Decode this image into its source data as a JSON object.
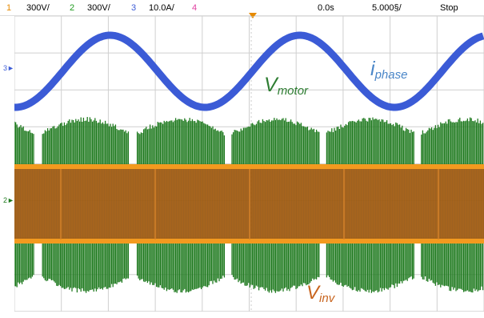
{
  "toolbar": {
    "ch1_num": "1",
    "ch1_scale": "300V/",
    "ch2_num": "2",
    "ch2_scale": "300V/",
    "ch3_num": "3",
    "ch3_scale": "10.0A/",
    "ch4_num": "4",
    "trigger_pos": "0.0s",
    "timebase": "5.000§/",
    "run_state": "Stop"
  },
  "annotations": {
    "v_motor_main": "V",
    "v_motor_sub": "motor",
    "i_phase_main": "i",
    "i_phase_sub": "phase",
    "v_inv_main": "V",
    "v_inv_sub": "inv"
  },
  "markers": {
    "ch3_marker": "3",
    "ch2_marker": "2"
  },
  "colors": {
    "ch1": "#e68a00",
    "ch2": "#1e7a1e",
    "ch3": "#3b5bd6",
    "ch4": "#e040a0",
    "v_motor_label": "#2e7d32",
    "i_phase_label": "#4a86c8",
    "v_inv_label": "#c8641e"
  }
}
